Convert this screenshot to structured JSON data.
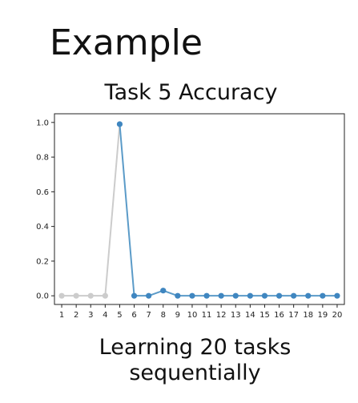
{
  "heading": "Example",
  "caption": {
    "line1": "Learning 20 tasks",
    "line2": "sequentially"
  },
  "colors": {
    "before_task": "#cccccc",
    "after_task": "#5b9bc8",
    "marker": "#3f86c0"
  },
  "chart_data": {
    "type": "line",
    "title": "Task 5 Accuracy",
    "xlabel": "",
    "ylabel": "",
    "x": [
      1,
      2,
      3,
      4,
      5,
      6,
      7,
      8,
      9,
      10,
      11,
      12,
      13,
      14,
      15,
      16,
      17,
      18,
      19,
      20
    ],
    "series": [
      {
        "values": [
          0.0,
          0.0,
          0.0,
          0.0,
          0.99,
          0.0,
          0.0,
          0.03,
          0.0,
          0.0,
          0.0,
          0.0,
          0.0,
          0.0,
          0.0,
          0.0,
          0.0,
          0.0,
          0.0,
          0.0
        ]
      }
    ],
    "highlight_from_x": 5,
    "yticks": [
      "0.0",
      "0.2",
      "0.4",
      "0.6",
      "0.8",
      "1.0"
    ],
    "ylim": [
      -0.05,
      1.05
    ],
    "xlim": [
      0.5,
      20.5
    ],
    "grid": false
  }
}
